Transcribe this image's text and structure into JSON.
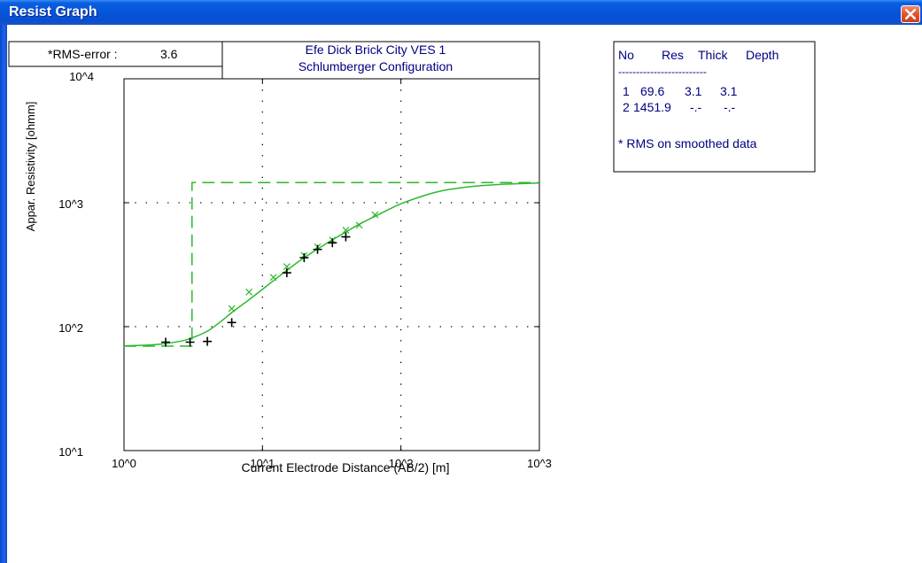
{
  "window": {
    "title": "Resist Graph",
    "close_icon": "close-icon"
  },
  "rms": {
    "label": "*RMS-error :",
    "value": "3.6"
  },
  "chart_data": {
    "type": "scatter",
    "title": "Efe Dick Brick City VES 1",
    "subtitle": "Schlumberger Configuration",
    "xlabel": "Current Electrode Distance (AB/2) [m]",
    "ylabel": "Appar. Resistivity [ohmm]",
    "x_scale": "log",
    "y_scale": "log",
    "xlim": [
      1,
      1000
    ],
    "ylim": [
      10,
      10000
    ],
    "x_ticks": [
      "10^0",
      "10^1",
      "10^2",
      "10^3"
    ],
    "y_ticks": [
      "10^1",
      "10^2",
      "10^3",
      "10^4"
    ],
    "grid": "dotted",
    "colors": {
      "model": "#2db82d",
      "observed": "#000000",
      "text": "#000080"
    },
    "series": [
      {
        "marker": "+",
        "points": [
          [
            2,
            75
          ],
          [
            3,
            75
          ],
          [
            4,
            76
          ],
          [
            6,
            108
          ],
          [
            15,
            272
          ],
          [
            20,
            360
          ],
          [
            25,
            420
          ],
          [
            32,
            475
          ],
          [
            40,
            530
          ]
        ]
      },
      {
        "marker": "x",
        "points": [
          [
            6,
            140
          ],
          [
            8,
            190
          ],
          [
            12,
            250
          ],
          [
            15,
            305
          ],
          [
            20,
            375
          ],
          [
            25,
            440
          ],
          [
            32,
            500
          ],
          [
            40,
            600
          ],
          [
            50,
            660
          ],
          [
            65,
            800
          ]
        ]
      },
      {
        "style": "solid",
        "points": [
          [
            1,
            70
          ],
          [
            1.5,
            71
          ],
          [
            2,
            73
          ],
          [
            2.5,
            76
          ],
          [
            3,
            80
          ],
          [
            4,
            92
          ],
          [
            5,
            110
          ],
          [
            6,
            130
          ],
          [
            8,
            165
          ],
          [
            10,
            200
          ],
          [
            15,
            285
          ],
          [
            20,
            360
          ],
          [
            30,
            480
          ],
          [
            40,
            580
          ],
          [
            50,
            670
          ],
          [
            70,
            810
          ],
          [
            100,
            980
          ],
          [
            150,
            1150
          ],
          [
            200,
            1250
          ],
          [
            300,
            1340
          ],
          [
            500,
            1400
          ],
          [
            1000,
            1440
          ]
        ]
      },
      {
        "style": "dashed",
        "points": [
          [
            1,
            69.6
          ],
          [
            3.1,
            69.6
          ],
          [
            3.1,
            1451.9
          ],
          [
            1000,
            1451.9
          ]
        ]
      }
    ]
  },
  "layer_table": {
    "headers": [
      "No",
      "Res",
      "Thick",
      "Depth"
    ],
    "separator": "-------------------------",
    "rows": [
      [
        "1",
        "69.6",
        "3.1",
        "3.1"
      ],
      [
        "2",
        "1451.9",
        "-.-",
        "-.-"
      ]
    ],
    "note": "* RMS on smoothed data"
  }
}
